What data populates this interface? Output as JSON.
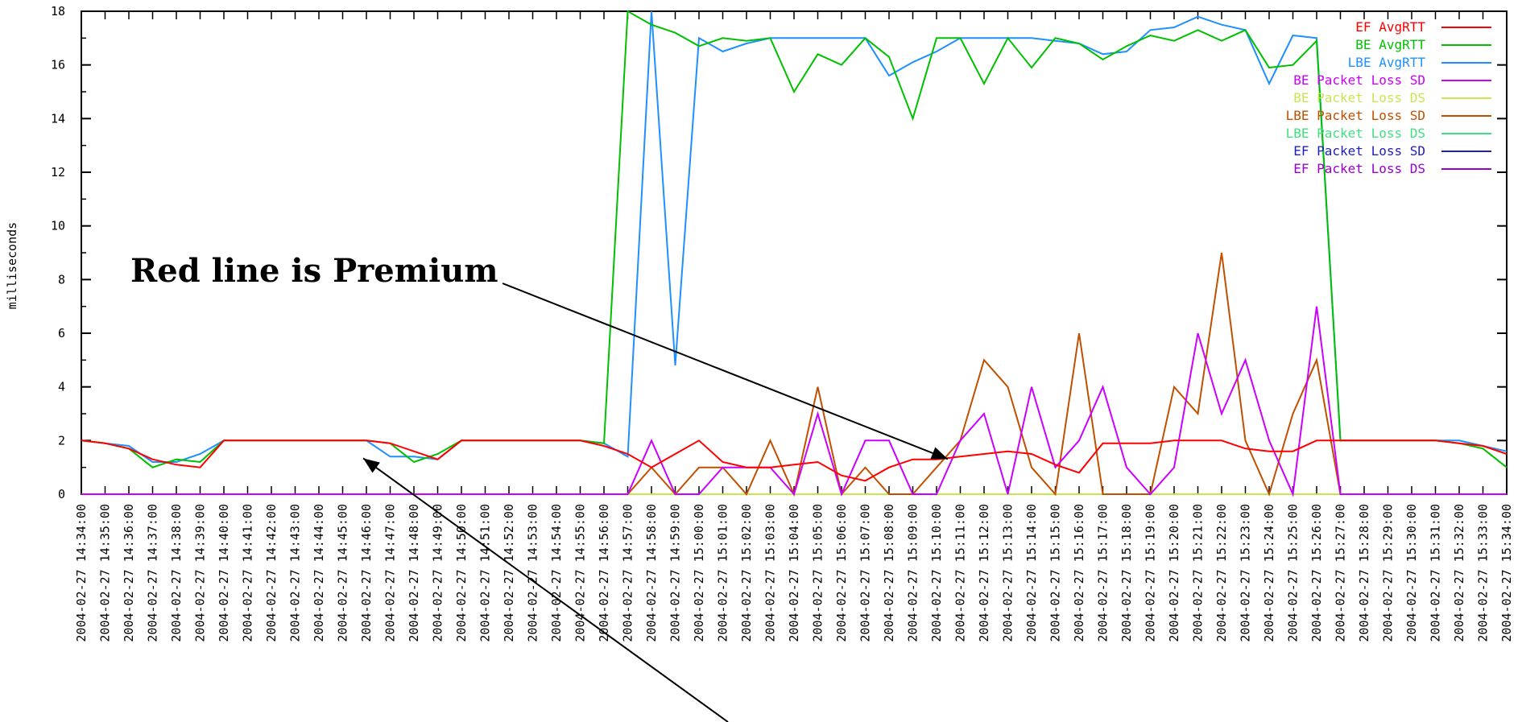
{
  "chart_data": {
    "type": "line",
    "ylabel": "milliseconds",
    "ylim": [
      0,
      18
    ],
    "yticks": [
      0,
      2,
      4,
      6,
      8,
      10,
      12,
      14,
      16,
      18
    ],
    "x": [
      "2004-02-27 14:34:00",
      "2004-02-27 14:35:00",
      "2004-02-27 14:36:00",
      "2004-02-27 14:37:00",
      "2004-02-27 14:38:00",
      "2004-02-27 14:39:00",
      "2004-02-27 14:40:00",
      "2004-02-27 14:41:00",
      "2004-02-27 14:42:00",
      "2004-02-27 14:43:00",
      "2004-02-27 14:44:00",
      "2004-02-27 14:45:00",
      "2004-02-27 14:46:00",
      "2004-02-27 14:47:00",
      "2004-02-27 14:48:00",
      "2004-02-27 14:49:00",
      "2004-02-27 14:50:00",
      "2004-02-27 14:51:00",
      "2004-02-27 14:52:00",
      "2004-02-27 14:53:00",
      "2004-02-27 14:54:00",
      "2004-02-27 14:55:00",
      "2004-02-27 14:56:00",
      "2004-02-27 14:57:00",
      "2004-02-27 14:58:00",
      "2004-02-27 14:59:00",
      "2004-02-27 15:00:00",
      "2004-02-27 15:01:00",
      "2004-02-27 15:02:00",
      "2004-02-27 15:03:00",
      "2004-02-27 15:04:00",
      "2004-02-27 15:05:00",
      "2004-02-27 15:06:00",
      "2004-02-27 15:07:00",
      "2004-02-27 15:08:00",
      "2004-02-27 15:09:00",
      "2004-02-27 15:10:00",
      "2004-02-27 15:11:00",
      "2004-02-27 15:12:00",
      "2004-02-27 15:13:00",
      "2004-02-27 15:14:00",
      "2004-02-27 15:15:00",
      "2004-02-27 15:16:00",
      "2004-02-27 15:17:00",
      "2004-02-27 15:18:00",
      "2004-02-27 15:19:00",
      "2004-02-27 15:20:00",
      "2004-02-27 15:21:00",
      "2004-02-27 15:22:00",
      "2004-02-27 15:23:00",
      "2004-02-27 15:24:00",
      "2004-02-27 15:25:00",
      "2004-02-27 15:26:00",
      "2004-02-27 15:27:00",
      "2004-02-27 15:28:00",
      "2004-02-27 15:29:00",
      "2004-02-27 15:30:00",
      "2004-02-27 15:31:00",
      "2004-02-27 15:32:00",
      "2004-02-27 15:33:00",
      "2004-02-27 15:34:00"
    ],
    "grid": false,
    "legend_position": "top-right",
    "series": [
      {
        "name": "EF AvgRTT",
        "color": "#ff0000",
        "values": [
          2,
          1.9,
          1.7,
          1.3,
          1.1,
          1,
          2,
          2,
          2,
          2,
          2,
          2,
          2,
          1.9,
          1.6,
          1.3,
          2,
          2,
          2,
          2,
          2,
          2,
          1.8,
          1.5,
          1,
          1.5,
          2,
          1.2,
          1,
          1,
          1.1,
          1.2,
          0.7,
          0.5,
          1,
          1.3,
          1.3,
          1.4,
          1.5,
          1.6,
          1.5,
          1.1,
          0.8,
          1.9,
          1.9,
          1.9,
          2,
          2,
          2,
          1.7,
          1.6,
          1.6,
          2,
          2,
          2,
          2,
          2,
          2,
          1.9,
          1.8,
          1.5
        ]
      },
      {
        "name": "BE AvgRTT",
        "color": "#00c000",
        "values": [
          2,
          1.9,
          1.7,
          1,
          1.3,
          1.2,
          2,
          2,
          2,
          2,
          2,
          2,
          2,
          1.9,
          1.2,
          1.5,
          2,
          2,
          2,
          2,
          2,
          2,
          1.9,
          18,
          17.5,
          17.2,
          16.7,
          17,
          16.9,
          17,
          15,
          16.4,
          16,
          17,
          16.3,
          14,
          17,
          17,
          15.3,
          17,
          15.9,
          17,
          16.8,
          16.2,
          16.7,
          17.1,
          16.9,
          17.3,
          16.9,
          17.3,
          15.9,
          16,
          16.9,
          2,
          2,
          2,
          2,
          2,
          1.9,
          1.7,
          1
        ]
      },
      {
        "name": "LBE AvgRTT",
        "color": "#1e90ff",
        "values": [
          2,
          1.9,
          1.8,
          1.2,
          1.2,
          1.5,
          2,
          2,
          2,
          2,
          2,
          2,
          2,
          1.4,
          1.4,
          1.3,
          2,
          2,
          2,
          2,
          2,
          2,
          1.9,
          1.4,
          18,
          4.8,
          17,
          16.5,
          16.8,
          17,
          17,
          17,
          17,
          17,
          15.6,
          16.1,
          16.5,
          17,
          17,
          17,
          17,
          16.9,
          16.8,
          16.4,
          16.5,
          17.3,
          17.4,
          17.8,
          17.5,
          17.3,
          15.3,
          17.1,
          17,
          2,
          2,
          2,
          2,
          2,
          2,
          1.8,
          1.6
        ]
      },
      {
        "name": "BE Packet Loss SD",
        "color": "#cc00ff",
        "values": [
          0,
          0,
          0,
          0,
          0,
          0,
          0,
          0,
          0,
          0,
          0,
          0,
          0,
          0,
          0,
          0,
          0,
          0,
          0,
          0,
          0,
          0,
          0,
          0,
          2,
          0,
          0,
          1,
          1,
          1,
          0,
          3,
          0,
          2,
          2,
          0,
          0,
          2,
          3,
          0,
          4,
          1,
          2,
          4,
          1,
          0,
          1,
          6,
          3,
          5,
          2,
          0,
          7,
          0,
          0,
          0,
          0,
          0,
          0,
          0,
          0
        ]
      },
      {
        "name": "BE Packet Loss DS",
        "color": "#c8e650",
        "values": [
          0,
          0,
          0,
          0,
          0,
          0,
          0,
          0,
          0,
          0,
          0,
          0,
          0,
          0,
          0,
          0,
          0,
          0,
          0,
          0,
          0,
          0,
          0,
          0,
          0,
          0,
          0,
          0,
          0,
          0,
          0,
          0,
          0,
          0,
          0,
          0,
          0,
          0,
          0,
          0,
          0,
          0,
          0,
          0,
          0,
          0,
          0,
          0,
          0,
          0,
          0,
          0,
          0,
          0,
          0,
          0,
          0,
          0,
          0,
          0,
          0
        ]
      },
      {
        "name": "LBE Packet Loss SD",
        "color": "#c05000",
        "values": [
          0,
          0,
          0,
          0,
          0,
          0,
          0,
          0,
          0,
          0,
          0,
          0,
          0,
          0,
          0,
          0,
          0,
          0,
          0,
          0,
          0,
          0,
          0,
          0,
          1,
          0,
          1,
          1,
          0,
          2,
          0,
          4,
          0,
          1,
          0,
          0,
          1,
          2,
          5,
          4,
          1,
          0,
          6,
          0,
          0,
          0,
          4,
          3,
          9,
          2,
          0,
          3,
          5,
          0,
          0,
          0,
          0,
          0,
          0,
          0,
          0
        ]
      },
      {
        "name": "LBE Packet Loss DS",
        "color": "#40e080",
        "values": [
          0,
          0,
          0,
          0,
          0,
          0,
          0,
          0,
          0,
          0,
          0,
          0,
          0,
          0,
          0,
          0,
          0,
          0,
          0,
          0,
          0,
          0,
          0,
          0,
          0,
          0,
          0,
          0,
          0,
          0,
          0,
          0,
          0,
          0,
          0,
          0,
          0,
          0,
          0,
          0,
          0,
          0,
          0,
          0,
          0,
          0,
          0,
          0,
          0,
          0,
          0,
          0,
          0,
          0,
          0,
          0,
          0,
          0,
          0,
          0,
          0
        ]
      },
      {
        "name": "EF Packet Loss SD",
        "color": "#2020c0",
        "values": [
          0,
          0,
          0,
          0,
          0,
          0,
          0,
          0,
          0,
          0,
          0,
          0,
          0,
          0,
          0,
          0,
          0,
          0,
          0,
          0,
          0,
          0,
          0,
          0,
          0,
          0,
          0,
          0,
          0,
          0,
          0,
          0,
          0,
          0,
          0,
          0,
          0,
          0,
          0,
          0,
          0,
          0,
          0,
          0,
          0,
          0,
          0,
          0,
          0,
          0,
          0,
          0,
          0,
          0,
          0,
          0,
          0,
          0,
          0,
          0,
          0
        ]
      },
      {
        "name": "EF Packet Loss DS",
        "color": "#9900cc",
        "values": [
          0,
          0,
          0,
          0,
          0,
          0,
          0,
          0,
          0,
          0,
          0,
          0,
          0,
          0,
          0,
          0,
          0,
          0,
          0,
          0,
          0,
          0,
          0,
          0,
          0,
          0,
          0,
          0,
          0,
          0,
          0,
          0,
          0,
          0,
          0,
          0,
          0,
          0,
          0,
          0,
          0,
          0,
          0,
          0,
          0,
          0,
          0,
          0,
          0,
          0,
          0,
          0,
          0,
          0,
          0,
          0,
          0,
          0,
          0,
          0,
          0
        ]
      }
    ],
    "annotations": [
      {
        "text": "Red line is Premium",
        "points_to": {
          "x_index": 36,
          "y": 1.4
        }
      }
    ],
    "arrows": [
      {
        "points_to": {
          "x_index": 12,
          "y": 2
        }
      }
    ]
  }
}
